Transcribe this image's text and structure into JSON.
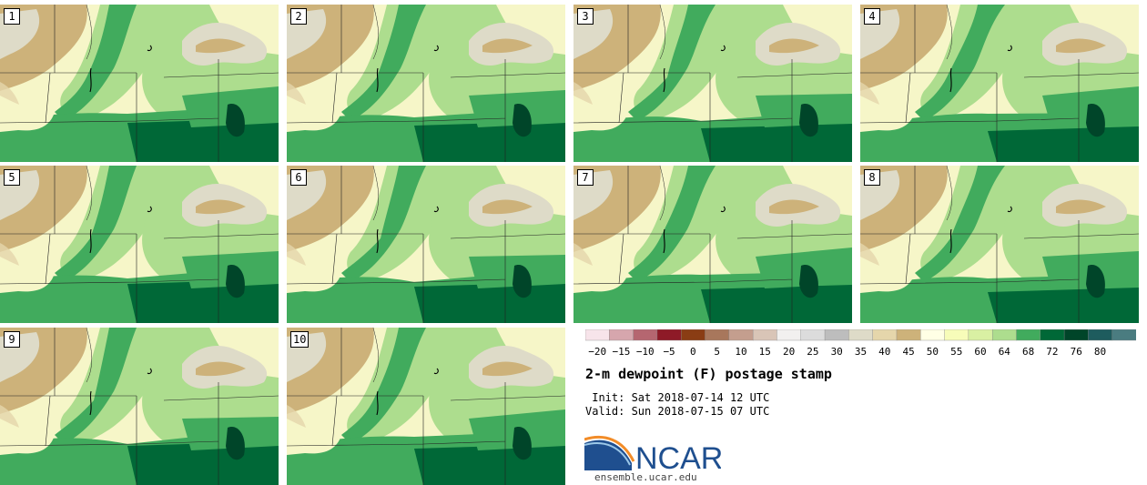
{
  "panels": [
    "1",
    "2",
    "3",
    "4",
    "5",
    "6",
    "7",
    "8",
    "9",
    "10"
  ],
  "colorbar": {
    "ticks": [
      "−20",
      "−15",
      "−10",
      "−5",
      "0",
      "5",
      "10",
      "15",
      "20",
      "25",
      "30",
      "35",
      "40",
      "45",
      "50",
      "55",
      "60",
      "64",
      "68",
      "72",
      "76",
      "80"
    ],
    "colors": [
      "#f7e4ea",
      "#d6a6ad",
      "#b56670",
      "#8e1a27",
      "#8a3d14",
      "#a8775c",
      "#c49e8e",
      "#d9c5b7",
      "#f2f0ef",
      "#dcdcdc",
      "#bdbdbd",
      "#dedbc8",
      "#e5d6ab",
      "#cdb27a",
      "#ffffe5",
      "#f7fcb9",
      "#d9f0a3",
      "#addd8e",
      "#41ab5d",
      "#006837",
      "#004529",
      "#1e5c5e",
      "#4a7c80"
    ]
  },
  "title": "2-m dewpoint (F) postage stamp",
  "init": " Init: Sat 2018-07-14 12 UTC",
  "valid": "Valid: Sun 2018-07-15 07 UTC",
  "logo_text": "NCAR",
  "url": "ensemble.ucar.edu"
}
